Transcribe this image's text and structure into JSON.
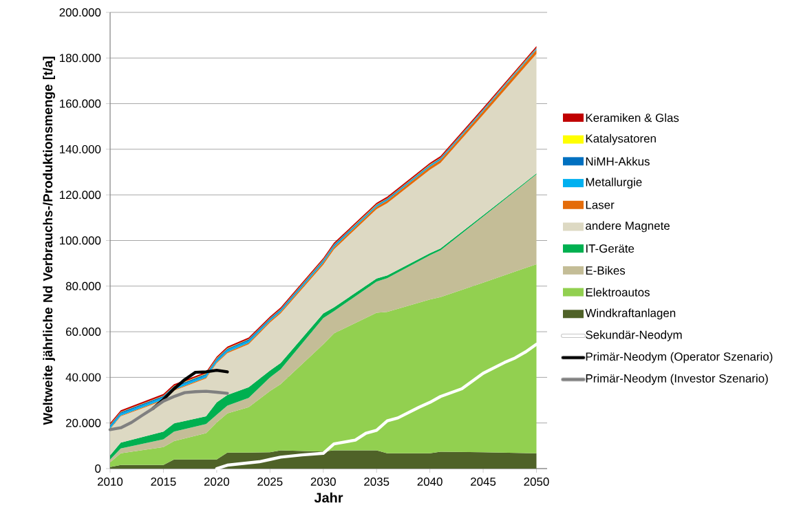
{
  "chart_data": {
    "type": "area",
    "stacked": true,
    "xlabel": "Jahr",
    "ylabel": "Weltweite jährliche Nd Verbrauchs-/Produktionsmenge [t/a]",
    "x": [
      2010,
      2011,
      2015,
      2016,
      2019,
      2020,
      2021,
      2023,
      2025,
      2026,
      2030,
      2031,
      2035,
      2036,
      2040,
      2041,
      2045,
      2050
    ],
    "series": [
      {
        "name": "Windkraftanlagen",
        "color": "#4f6228",
        "values": [
          700,
          1600,
          1600,
          4000,
          4000,
          4000,
          7000,
          7000,
          7200,
          8000,
          7500,
          8000,
          8000,
          6700,
          6700,
          7400,
          7200,
          6700
        ]
      },
      {
        "name": "Elektroautos",
        "color": "#92d050",
        "values": [
          2000,
          5100,
          7800,
          8100,
          11500,
          16200,
          17200,
          19900,
          26800,
          29000,
          47000,
          51300,
          60300,
          62000,
          67400,
          67800,
          74300,
          82900
        ]
      },
      {
        "name": "E-Bikes",
        "color": "#c4bd97",
        "values": [
          1300,
          2100,
          3400,
          4100,
          4000,
          3400,
          3400,
          4100,
          6000,
          6500,
          11500,
          9700,
          13700,
          14800,
          19400,
          20500,
          29000,
          39400
        ]
      },
      {
        "name": "IT-Geräte",
        "color": "#00b050",
        "values": [
          1800,
          2600,
          3400,
          3600,
          3400,
          5400,
          4700,
          4700,
          3000,
          2800,
          2000,
          1700,
          1300,
          1200,
          900,
          800,
          600,
          400
        ]
      },
      {
        "name": "andere Magnete",
        "color": "#ddd9c3",
        "values": [
          11500,
          11500,
          13700,
          14400,
          16600,
          17200,
          18300,
          18800,
          21000,
          21700,
          21400,
          25400,
          30400,
          31700,
          36600,
          37500,
          44000,
          52400
        ]
      },
      {
        "name": "Laser",
        "color": "#e46c0a",
        "values": [
          300,
          300,
          400,
          400,
          500,
          500,
          500,
          600,
          700,
          700,
          900,
          900,
          1100,
          1100,
          1300,
          1300,
          1500,
          1800
        ]
      },
      {
        "name": "Metallurgie",
        "color": "#00b0f0",
        "values": [
          900,
          900,
          900,
          900,
          900,
          900,
          900,
          900,
          600,
          600,
          600,
          600,
          400,
          400,
          400,
          400,
          400,
          400
        ]
      },
      {
        "name": "NiMH-Akkus",
        "color": "#0070c0",
        "values": [
          600,
          600,
          600,
          600,
          600,
          600,
          600,
          600,
          500,
          500,
          500,
          500,
          400,
          400,
          400,
          400,
          300,
          300
        ]
      },
      {
        "name": "Katalysatoren",
        "color": "#ffff00",
        "values": [
          200,
          200,
          200,
          200,
          200,
          200,
          200,
          200,
          200,
          200,
          200,
          200,
          200,
          200,
          200,
          200,
          200,
          200
        ]
      },
      {
        "name": "Keramiken & Glas",
        "color": "#c00000",
        "values": [
          700,
          700,
          700,
          700,
          700,
          700,
          700,
          700,
          700,
          700,
          700,
          700,
          700,
          700,
          700,
          700,
          700,
          700
        ]
      },
      {
        "name": "Sekundär-Neodym",
        "color": "#ffffff",
        "type": "line",
        "x": [
          2020,
          2021,
          2024,
          2025,
          2026,
          2028,
          2030,
          2031,
          2033,
          2034,
          2035,
          2036,
          2037,
          2039,
          2040,
          2041,
          2043,
          2044,
          2045,
          2047,
          2048,
          2049,
          2050
        ],
        "values": [
          0,
          1500,
          3000,
          4000,
          5000,
          6000,
          6700,
          10800,
          12500,
          15500,
          16800,
          20900,
          22200,
          26900,
          29000,
          31600,
          35000,
          38400,
          41800,
          46500,
          48500,
          51200,
          54500
        ]
      },
      {
        "name": "Primär-Neodym (Operator Szenario)",
        "color": "#000000",
        "type": "line",
        "x": [
          2014,
          2015,
          2016,
          2017,
          2018,
          2019,
          2020,
          2021
        ],
        "values": [
          26300,
          30300,
          35000,
          39000,
          42200,
          42400,
          43100,
          42400
        ]
      },
      {
        "name": "Primär-Neodym (Investor Szenario)",
        "color": "#808080",
        "type": "line",
        "x": [
          2010,
          2011,
          2012,
          2013,
          2014,
          2015,
          2016,
          2017,
          2018,
          2019,
          2020,
          2021
        ],
        "values": [
          17100,
          17900,
          20200,
          23300,
          26300,
          29600,
          31600,
          33300,
          33700,
          33900,
          33500,
          33000
        ]
      }
    ],
    "xlim": [
      2010,
      2051
    ],
    "ylim": [
      0,
      200000
    ],
    "xticks": [
      2010,
      2015,
      2020,
      2025,
      2030,
      2035,
      2040,
      2045,
      2050
    ],
    "yticks": [
      0,
      {
        "value": 20000,
        "label": "20.000"
      },
      {
        "value": 40000,
        "label": "40.000"
      },
      {
        "value": 60000,
        "label": "60.000"
      },
      {
        "value": 80000,
        "label": "80.000"
      },
      {
        "value": 100000,
        "label": "100.000"
      },
      {
        "value": 120000,
        "label": "120.000"
      },
      {
        "value": 140000,
        "label": "140.000"
      },
      {
        "value": 160000,
        "label": "160.000"
      },
      {
        "value": 180000,
        "label": "180.000"
      },
      {
        "value": 200000,
        "label": "200.000"
      }
    ],
    "grid": "y",
    "legend": "right"
  }
}
